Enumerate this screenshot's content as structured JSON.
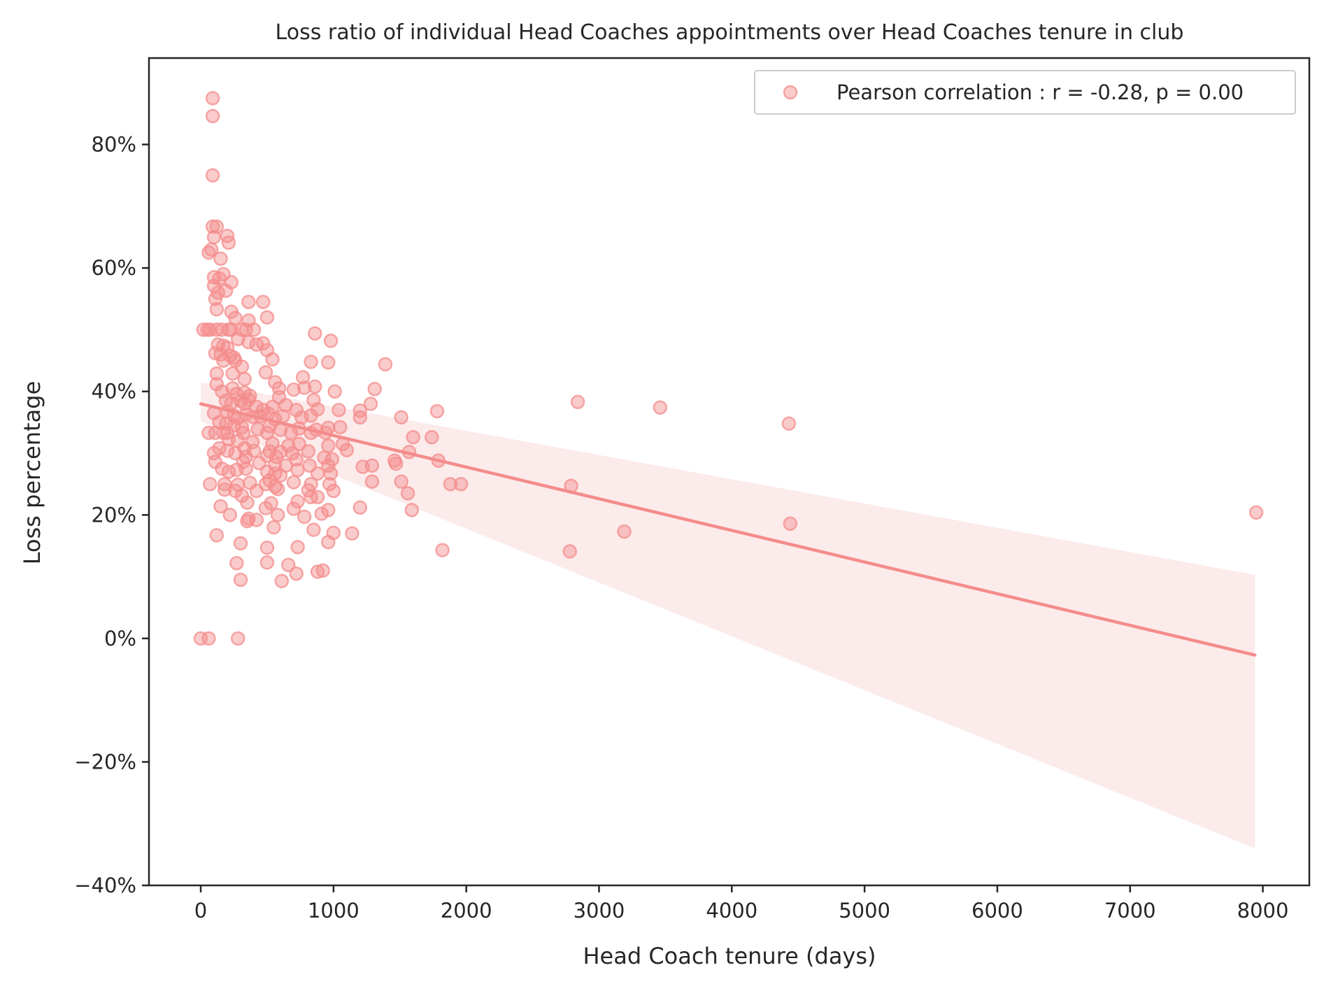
{
  "chart_data": {
    "type": "scatter",
    "title": "Loss ratio of individual Head Coaches appointments over Head Coaches tenure in club",
    "xlabel": "Head Coach tenure (days)",
    "ylabel": "Loss percentage",
    "xlim": [
      -390,
      8350
    ],
    "ylim": [
      -40,
      94
    ],
    "x_ticks": [
      0,
      1000,
      2000,
      3000,
      4000,
      5000,
      6000,
      7000,
      8000
    ],
    "y_ticks": [
      -40,
      -20,
      0,
      20,
      40,
      60,
      80
    ],
    "y_tick_labels": [
      "−40%",
      "−20%",
      "0%",
      "20%",
      "40%",
      "60%",
      "80%"
    ],
    "grid": false,
    "legend": {
      "position": "top-right",
      "entries": [
        "Pearson correlation : r = -0.28, p = 0.00"
      ]
    },
    "colors": {
      "points": "#f48c8c",
      "line": "#f48c8c",
      "band": "#fbe4e4"
    },
    "regression": {
      "x": [
        0,
        7940
      ],
      "y": [
        38,
        -2.7
      ],
      "ci_upper": [
        41.5,
        10.3
      ],
      "ci_lower": [
        35.2,
        -34.0
      ]
    },
    "series": [
      {
        "name": "Pearson correlation : r = -0.28, p = 0.00",
        "points": [
          [
            90,
            87.5
          ],
          [
            90,
            84.6
          ],
          [
            90,
            75.0
          ],
          [
            90,
            66.7
          ],
          [
            120,
            66.7
          ],
          [
            100,
            65.0
          ],
          [
            200,
            65.2
          ],
          [
            210,
            64.1
          ],
          [
            60,
            62.5
          ],
          [
            80,
            63.0
          ],
          [
            150,
            61.5
          ],
          [
            100,
            58.5
          ],
          [
            140,
            58.3
          ],
          [
            170,
            59.0
          ],
          [
            230,
            57.7
          ],
          [
            100,
            57.1
          ],
          [
            130,
            56.0
          ],
          [
            190,
            56.3
          ],
          [
            110,
            55.0
          ],
          [
            120,
            53.3
          ],
          [
            230,
            52.9
          ],
          [
            260,
            51.9
          ],
          [
            360,
            54.5
          ],
          [
            470,
            54.5
          ],
          [
            500,
            52.0
          ],
          [
            360,
            51.5
          ],
          [
            20,
            50.0
          ],
          [
            50,
            50.0
          ],
          [
            70,
            50.0
          ],
          [
            120,
            50.0
          ],
          [
            160,
            50.0
          ],
          [
            210,
            50.0
          ],
          [
            230,
            50.0
          ],
          [
            310,
            50.0
          ],
          [
            340,
            50.0
          ],
          [
            400,
            50.0
          ],
          [
            860,
            49.4
          ],
          [
            980,
            48.2
          ],
          [
            130,
            47.6
          ],
          [
            170,
            47.4
          ],
          [
            200,
            47.1
          ],
          [
            280,
            48.5
          ],
          [
            360,
            48.0
          ],
          [
            420,
            47.6
          ],
          [
            470,
            47.8
          ],
          [
            500,
            46.7
          ],
          [
            110,
            46.2
          ],
          [
            150,
            46.0
          ],
          [
            220,
            45.8
          ],
          [
            250,
            45.5
          ],
          [
            260,
            45.0
          ],
          [
            170,
            45.0
          ],
          [
            540,
            45.2
          ],
          [
            830,
            44.8
          ],
          [
            960,
            44.7
          ],
          [
            1390,
            44.4
          ],
          [
            310,
            44.0
          ],
          [
            490,
            43.1
          ],
          [
            120,
            42.9
          ],
          [
            240,
            42.9
          ],
          [
            330,
            42.0
          ],
          [
            770,
            42.3
          ],
          [
            560,
            41.5
          ],
          [
            120,
            41.2
          ],
          [
            240,
            40.5
          ],
          [
            590,
            40.5
          ],
          [
            700,
            40.3
          ],
          [
            780,
            40.6
          ],
          [
            860,
            40.8
          ],
          [
            1310,
            40.4
          ],
          [
            1010,
            40.0
          ],
          [
            160,
            40.0
          ],
          [
            270,
            39.6
          ],
          [
            330,
            39.8
          ],
          [
            370,
            39.3
          ],
          [
            590,
            39.1
          ],
          [
            850,
            38.6
          ],
          [
            190,
            38.5
          ],
          [
            230,
            38.1
          ],
          [
            300,
            38.5
          ],
          [
            330,
            38.0
          ],
          [
            360,
            38.7
          ],
          [
            420,
            37.5
          ],
          [
            470,
            37.0
          ],
          [
            540,
            37.5
          ],
          [
            640,
            37.8
          ],
          [
            720,
            37.0
          ],
          [
            880,
            37.1
          ],
          [
            1040,
            37.0
          ],
          [
            1280,
            38.0
          ],
          [
            1200,
            36.9
          ],
          [
            1780,
            36.8
          ],
          [
            2840,
            38.3
          ],
          [
            3460,
            37.4
          ],
          [
            100,
            36.5
          ],
          [
            200,
            36.7
          ],
          [
            250,
            36.1
          ],
          [
            280,
            35.7
          ],
          [
            340,
            36.3
          ],
          [
            390,
            35.9
          ],
          [
            450,
            36.0
          ],
          [
            510,
            36.4
          ],
          [
            560,
            35.5
          ],
          [
            620,
            36.0
          ],
          [
            760,
            35.8
          ],
          [
            830,
            36.1
          ],
          [
            1200,
            35.8
          ],
          [
            1510,
            35.8
          ],
          [
            140,
            35.0
          ],
          [
            190,
            34.8
          ],
          [
            250,
            34.5
          ],
          [
            310,
            34.2
          ],
          [
            430,
            33.9
          ],
          [
            520,
            34.4
          ],
          [
            600,
            33.8
          ],
          [
            740,
            34.0
          ],
          [
            870,
            33.8
          ],
          [
            960,
            34.1
          ],
          [
            1050,
            34.2
          ],
          [
            4430,
            34.8
          ],
          [
            60,
            33.3
          ],
          [
            110,
            33.3
          ],
          [
            170,
            33.3
          ],
          [
            200,
            33.3
          ],
          [
            320,
            33.3
          ],
          [
            500,
            33.3
          ],
          [
            680,
            33.3
          ],
          [
            830,
            33.3
          ],
          [
            940,
            33.3
          ],
          [
            210,
            32.3
          ],
          [
            280,
            32.0
          ],
          [
            390,
            31.8
          ],
          [
            540,
            31.6
          ],
          [
            660,
            31.2
          ],
          [
            740,
            31.5
          ],
          [
            960,
            31.2
          ],
          [
            1070,
            31.5
          ],
          [
            1600,
            32.6
          ],
          [
            1740,
            32.6
          ],
          [
            140,
            30.8
          ],
          [
            200,
            30.4
          ],
          [
            330,
            30.8
          ],
          [
            400,
            30.4
          ],
          [
            520,
            30.3
          ],
          [
            600,
            30.2
          ],
          [
            690,
            30.0
          ],
          [
            810,
            30.3
          ],
          [
            1100,
            30.5
          ],
          [
            1570,
            30.2
          ],
          [
            100,
            30.0
          ],
          [
            260,
            30.0
          ],
          [
            340,
            29.4
          ],
          [
            500,
            29.6
          ],
          [
            570,
            29.4
          ],
          [
            720,
            29.0
          ],
          [
            930,
            29.3
          ],
          [
            990,
            29.0
          ],
          [
            1460,
            28.8
          ],
          [
            1790,
            28.8
          ],
          [
            110,
            28.6
          ],
          [
            320,
            28.6
          ],
          [
            440,
            28.4
          ],
          [
            560,
            28.1
          ],
          [
            640,
            28.0
          ],
          [
            820,
            28.0
          ],
          [
            960,
            28.0
          ],
          [
            1220,
            27.8
          ],
          [
            1290,
            28.0
          ],
          [
            1470,
            28.3
          ],
          [
            160,
            27.5
          ],
          [
            210,
            27.0
          ],
          [
            270,
            27.3
          ],
          [
            340,
            27.5
          ],
          [
            500,
            27.0
          ],
          [
            560,
            26.7
          ],
          [
            730,
            27.3
          ],
          [
            600,
            26.4
          ],
          [
            880,
            26.7
          ],
          [
            980,
            26.7
          ],
          [
            70,
            25.0
          ],
          [
            180,
            25.0
          ],
          [
            280,
            24.9
          ],
          [
            370,
            25.2
          ],
          [
            490,
            25.0
          ],
          [
            520,
            25.6
          ],
          [
            560,
            24.6
          ],
          [
            700,
            25.3
          ],
          [
            830,
            25.0
          ],
          [
            970,
            25.0
          ],
          [
            1290,
            25.4
          ],
          [
            1510,
            25.4
          ],
          [
            1880,
            25.0
          ],
          [
            1960,
            25.0
          ],
          [
            2790,
            24.7
          ],
          [
            180,
            24.1
          ],
          [
            260,
            23.9
          ],
          [
            310,
            23.1
          ],
          [
            420,
            23.9
          ],
          [
            580,
            24.2
          ],
          [
            810,
            24.0
          ],
          [
            1000,
            23.9
          ],
          [
            1560,
            23.5
          ],
          [
            880,
            22.9
          ],
          [
            730,
            22.2
          ],
          [
            350,
            22.0
          ],
          [
            530,
            21.9
          ],
          [
            150,
            21.4
          ],
          [
            490,
            21.1
          ],
          [
            700,
            21.0
          ],
          [
            830,
            22.9
          ],
          [
            960,
            20.8
          ],
          [
            1200,
            21.2
          ],
          [
            1590,
            20.8
          ],
          [
            220,
            20.0
          ],
          [
            360,
            19.4
          ],
          [
            420,
            19.2
          ],
          [
            580,
            20.0
          ],
          [
            780,
            19.7
          ],
          [
            910,
            20.2
          ],
          [
            350,
            19.0
          ],
          [
            550,
            18.0
          ],
          [
            850,
            17.6
          ],
          [
            1000,
            17.1
          ],
          [
            1140,
            17.0
          ],
          [
            120,
            16.7
          ],
          [
            960,
            15.6
          ],
          [
            3190,
            17.3
          ],
          [
            4440,
            18.6
          ],
          [
            7950,
            20.4
          ],
          [
            300,
            15.4
          ],
          [
            500,
            14.7
          ],
          [
            730,
            14.8
          ],
          [
            1820,
            14.3
          ],
          [
            2780,
            14.1
          ],
          [
            270,
            12.2
          ],
          [
            500,
            12.3
          ],
          [
            660,
            11.9
          ],
          [
            720,
            10.5
          ],
          [
            880,
            10.8
          ],
          [
            920,
            11.0
          ],
          [
            300,
            9.5
          ],
          [
            610,
            9.3
          ],
          [
            0,
            0.0
          ],
          [
            60,
            0.0
          ],
          [
            280,
            0.0
          ]
        ]
      }
    ]
  }
}
